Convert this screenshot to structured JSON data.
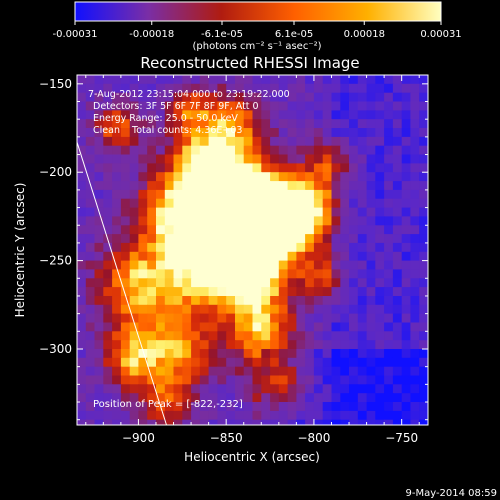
{
  "chart_data": {
    "type": "heatmap",
    "title": "Reconstructed RHESSI Image",
    "xlabel": "Heliocentric X (arcsec)",
    "ylabel": "Heliocentric Y (arcsec)",
    "xlim": [
      -935,
      -735
    ],
    "ylim": [
      -343,
      -145
    ],
    "xticks": [
      -900,
      -850,
      -800,
      -750
    ],
    "yticks": [
      -150,
      -200,
      -250,
      -300
    ],
    "xtick_labels": [
      "−900",
      "−850",
      "−800",
      "−750"
    ],
    "ytick_labels": [
      "−150",
      "−200",
      "−250",
      "−300"
    ],
    "colorbar": {
      "min": -0.00031,
      "max": 0.00031,
      "ticks": [
        -0.00031,
        -0.00018,
        -6.1e-05,
        6.1e-05,
        0.00018,
        0.00031
      ],
      "tick_labels": [
        "-0.00031",
        "-0.00018",
        "-6.1e-05",
        "6.1e-05",
        "0.00018",
        "0.00031"
      ],
      "units": "(photons cm⁻² s⁻¹ asec⁻²)",
      "colors": [
        "#1010ff",
        "#7a2ea6",
        "#b01c10",
        "#ff6000",
        "#ffb000",
        "#ffffc0"
      ]
    },
    "peak": [
      -822,
      -232
    ],
    "limb_line": [
      [
        -935,
        -183
      ],
      [
        -884,
        -343
      ]
    ]
  },
  "annotations": [
    "7-Aug-2012 23:15:04.000 to 23:19:22.000",
    "Detectors: 3F 5F 6F 7F 8F 9F, Att 0",
    "Energy Range: 25.0 - 50.0 keV",
    "Clean    Total counts: 4.36E+03"
  ],
  "peak_label": "Position of Peak = [-822,-232]",
  "timestamp": "9-May-2014 08:59"
}
